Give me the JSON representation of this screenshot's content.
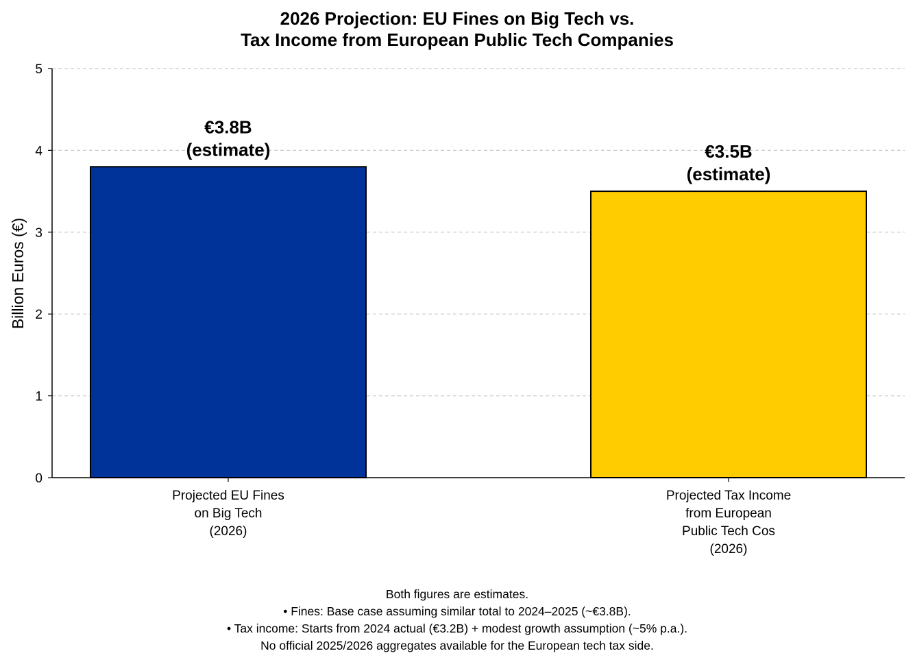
{
  "chart_data": {
    "type": "bar",
    "title": [
      "2026 Projection: EU Fines on Big Tech vs.",
      "Tax Income from European Public Tech Companies"
    ],
    "xlabel": "",
    "ylabel": "Billion Euros (€)",
    "ylim": [
      0,
      5
    ],
    "yticks": [
      0,
      1,
      2,
      3,
      4,
      5
    ],
    "grid": "y-dashed",
    "categories": [
      [
        "Projected EU Fines",
        "on Big Tech",
        "(2026)"
      ],
      [
        "Projected Tax Income",
        "from European",
        "Public Tech Cos",
        "(2026)"
      ]
    ],
    "values": [
      3.8,
      3.5
    ],
    "colors": [
      "#003399",
      "#FFCC00"
    ],
    "data_labels": [
      [
        "€3.8B",
        "(estimate)"
      ],
      [
        "€3.5B",
        "(estimate)"
      ]
    ],
    "footnote": [
      "Both figures are estimates.",
      "• Fines: Base case assuming similar total to 2024–2025 (~€3.8B).",
      "• Tax income: Starts from 2024 actual (€3.2B) + modest growth assumption (~5% p.a.).",
      "No official 2025/2026 aggregates available for the European tech tax side."
    ]
  }
}
